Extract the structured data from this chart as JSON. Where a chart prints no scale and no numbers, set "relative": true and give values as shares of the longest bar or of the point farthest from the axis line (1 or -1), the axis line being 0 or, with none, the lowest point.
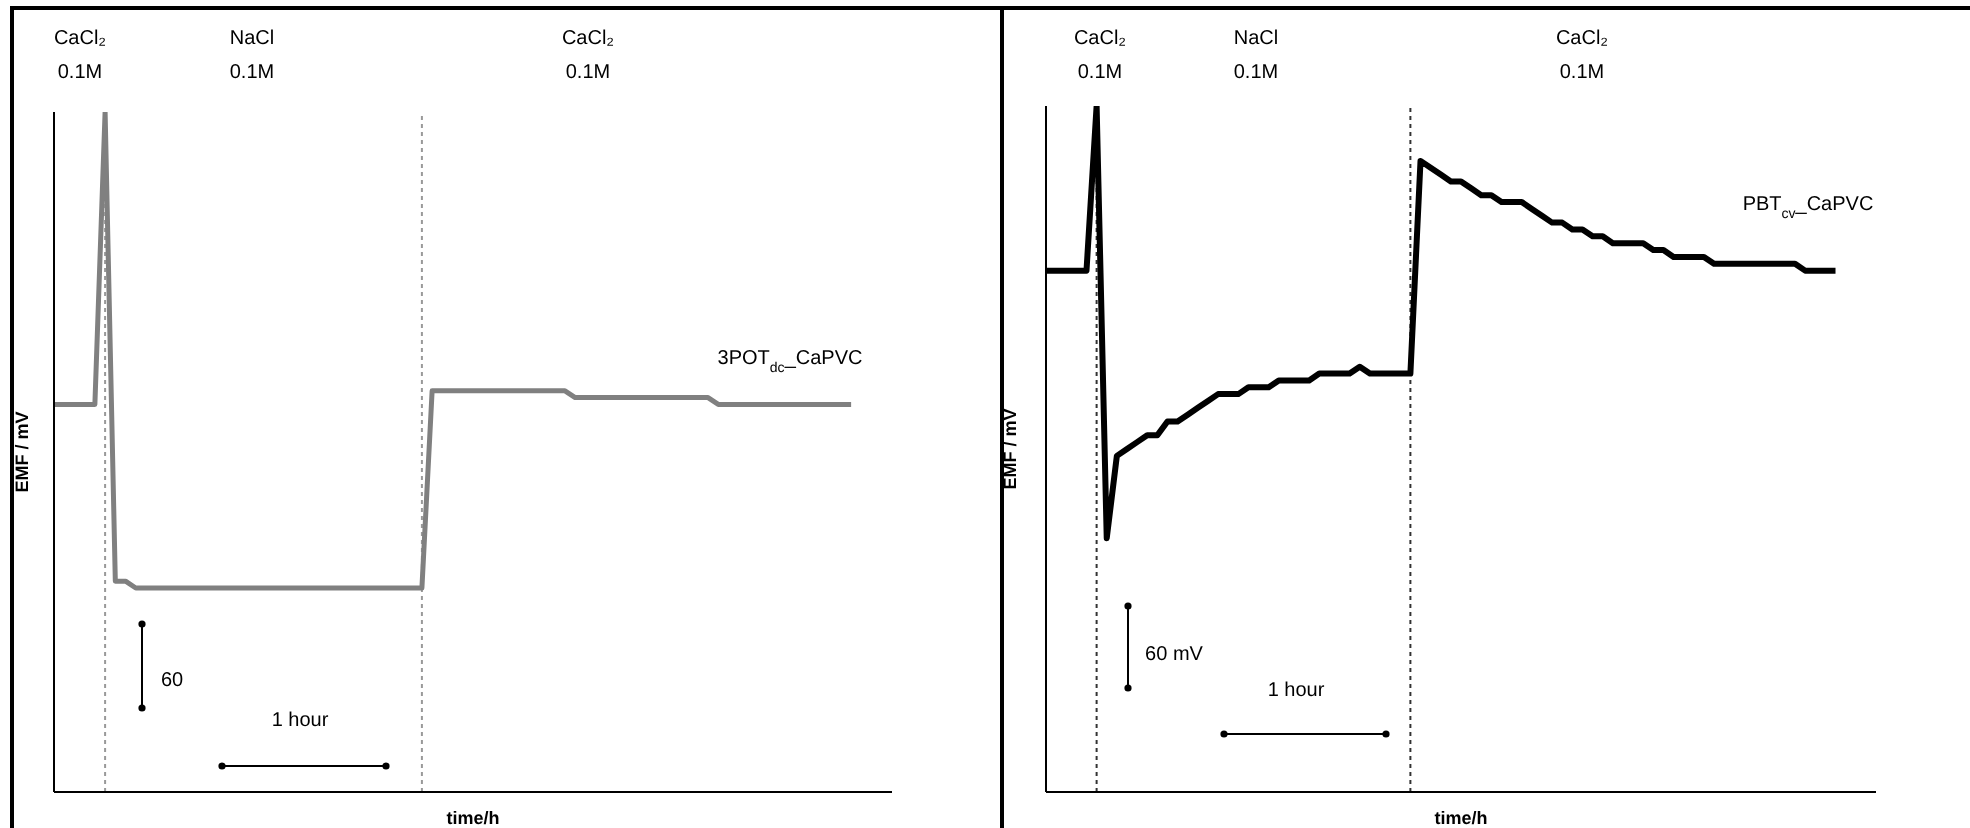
{
  "chart_data": [
    {
      "type": "line",
      "relative": true,
      "xlabel": "time/h",
      "ylabel": "EMF / mV",
      "categories": [
        null,
        null,
        null,
        null,
        null,
        null,
        null,
        null,
        null,
        null,
        null,
        null,
        null,
        null,
        null,
        null,
        null,
        null,
        null,
        null,
        null,
        null,
        null,
        null,
        null,
        null,
        null,
        null,
        null,
        null,
        null,
        null,
        null,
        null,
        null,
        null,
        null,
        null,
        null,
        null,
        null,
        null,
        null,
        null,
        null,
        null,
        null,
        null,
        null,
        null,
        null,
        null,
        null,
        null,
        null,
        null,
        null,
        null,
        null,
        null,
        null,
        null,
        null,
        null,
        null,
        null,
        null,
        null,
        null,
        null,
        null,
        null,
        null,
        null,
        null,
        null,
        null,
        null,
        null,
        null,
        null,
        null,
        null
      ],
      "series": [
        {
          "name": "3POT$_{dc}$_CaPVC",
          "color": "#808080",
          "values": [
            0.57,
            0.57,
            0.57,
            0.57,
            0.57,
            1,
            0.31,
            0.31,
            0.3,
            0.3,
            0.3,
            0.3,
            0.3,
            0.3,
            0.3,
            0.3,
            0.3,
            0.3,
            0.3,
            0.3,
            0.3,
            0.3,
            0.3,
            0.3,
            0.3,
            0.3,
            0.3,
            0.3,
            0.3,
            0.3,
            0.3,
            0.3,
            0.3,
            0.3,
            0.3,
            0.3,
            0.3,
            0.59,
            0.59,
            0.59,
            0.59,
            0.59,
            0.59,
            0.59,
            0.59,
            0.59,
            0.59,
            0.59,
            0.59,
            0.59,
            0.59,
            0.58,
            0.58,
            0.58,
            0.58,
            0.58,
            0.58,
            0.58,
            0.58,
            0.58,
            0.58,
            0.58,
            0.58,
            0.58,
            0.58,
            0.57,
            0.57,
            0.57,
            0.57,
            0.57,
            0.57,
            0.57,
            0.57,
            0.57,
            0.57,
            0.57,
            0.57,
            0.57,
            0.57,
            null,
            null,
            null,
            null
          ]
        }
      ],
      "annotations": [
        "CaCl₂ 0.1M",
        "NaCl 0.1M",
        "CaCl₂ 0.1M",
        "60",
        "1 hour"
      ]
    },
    {
      "type": "line",
      "relative": true,
      "xlabel": "time/h",
      "ylabel": "EMF / mV",
      "categories": [
        null,
        null,
        null,
        null,
        null,
        null,
        null,
        null,
        null,
        null,
        null,
        null,
        null,
        null,
        null,
        null,
        null,
        null,
        null,
        null,
        null,
        null,
        null,
        null,
        null,
        null,
        null,
        null,
        null,
        null,
        null,
        null,
        null,
        null,
        null,
        null,
        null,
        null,
        null,
        null,
        null,
        null,
        null,
        null,
        null,
        null,
        null,
        null,
        null,
        null,
        null,
        null,
        null,
        null,
        null,
        null,
        null,
        null,
        null,
        null,
        null,
        null,
        null,
        null,
        null,
        null,
        null,
        null,
        null,
        null,
        null,
        null,
        null,
        null,
        null,
        null,
        null,
        null,
        null,
        null,
        null,
        null,
        null
      ],
      "series": [
        {
          "name": "PBT$_{cv}$_CaPVC",
          "color": "#000000",
          "values": [
            0.76,
            0.76,
            0.76,
            0.76,
            0.76,
            1,
            0.37,
            0.49,
            0.5,
            0.51,
            0.52,
            0.52,
            0.54,
            0.54,
            0.55,
            0.56,
            0.57,
            0.58,
            0.58,
            0.58,
            0.59,
            0.59,
            0.59,
            0.6,
            0.6,
            0.6,
            0.6,
            0.61,
            0.61,
            0.61,
            0.61,
            0.62,
            0.61,
            0.61,
            0.61,
            0.61,
            0.61,
            0.92,
            0.91,
            0.9,
            0.89,
            0.89,
            0.88,
            0.87,
            0.87,
            0.86,
            0.86,
            0.86,
            0.85,
            0.84,
            0.83,
            0.83,
            0.82,
            0.82,
            0.81,
            0.81,
            0.8,
            0.8,
            0.8,
            0.8,
            0.79,
            0.79,
            0.78,
            0.78,
            0.78,
            0.78,
            0.77,
            0.77,
            0.77,
            0.77,
            0.77,
            0.77,
            0.77,
            0.77,
            0.77,
            0.76,
            0.76,
            0.76,
            0.76,
            null,
            null,
            null,
            null
          ]
        }
      ],
      "annotations": [
        "CaCl₂ 0.1M",
        "NaCl 0.1M",
        "CaCl₂ 0.1M",
        "60 mV",
        "1 hour"
      ]
    }
  ]
}
